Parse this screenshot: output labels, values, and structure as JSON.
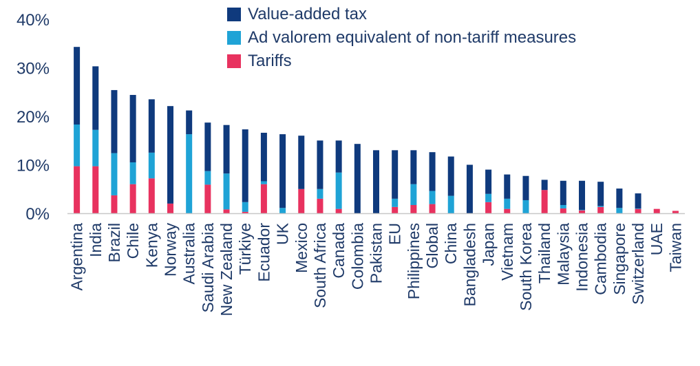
{
  "chart_data": {
    "type": "bar",
    "stacked": true,
    "title": "",
    "xlabel": "",
    "ylabel": "",
    "ylim": [
      0,
      40
    ],
    "yticks": [
      0,
      10,
      20,
      30,
      40
    ],
    "ytick_labels": [
      "0%",
      "10%",
      "20%",
      "30%",
      "40%"
    ],
    "legend_position": "top-center",
    "categories": [
      "Argentina",
      "India",
      "Brazil",
      "Chile",
      "Kenya",
      "Norway",
      "Australia",
      "Saudi Arabia",
      "New Zealand",
      "Türkiye",
      "Ecuador",
      "UK",
      "Mexico",
      "South Africa",
      "Canada",
      "Colombia",
      "Pakistan",
      "EU",
      "Philippines",
      "Global",
      "China",
      "Bangladesh",
      "Japan",
      "Vietnam",
      "South Korea",
      "Thailand",
      "Malaysia",
      "Indonesia",
      "Cambodia",
      "Singapore",
      "Switzerland",
      "UAE",
      "Taiwan"
    ],
    "series": [
      {
        "name": "Tariffs",
        "color": "#e8325f",
        "values": [
          9.7,
          9.7,
          3.7,
          6.0,
          7.2,
          2.0,
          0,
          5.9,
          0.8,
          0.3,
          6.0,
          0,
          5.0,
          3.0,
          0.9,
          0,
          0,
          1.3,
          1.7,
          1.9,
          0,
          0,
          2.3,
          0.9,
          0,
          4.8,
          1.0,
          0.6,
          1.3,
          0,
          0.9,
          0.9,
          0.5
        ]
      },
      {
        "name": "Ad valorem equivalent of non-tariff measures",
        "color": "#1fa3d6",
        "values": [
          8.6,
          7.5,
          8.7,
          4.5,
          5.3,
          0,
          16.3,
          2.8,
          7.4,
          2.0,
          0.6,
          1.1,
          0,
          2.0,
          7.5,
          0,
          0,
          1.7,
          4.3,
          2.7,
          3.6,
          0,
          1.7,
          2.1,
          2.7,
          0,
          0.7,
          0.1,
          0.2,
          1.1,
          0.1,
          0,
          0
        ]
      },
      {
        "name": "Value-added tax",
        "color": "#0f3a7d",
        "values": [
          16.0,
          13.1,
          13.0,
          13.9,
          11.0,
          20.1,
          4.9,
          10.0,
          10.0,
          15.0,
          10.0,
          15.2,
          11.0,
          10.0,
          6.6,
          14.3,
          13.0,
          10.0,
          7.0,
          8.0,
          8.1,
          10.0,
          5.0,
          5.0,
          5.0,
          2.1,
          5.0,
          6.0,
          5.0,
          4.0,
          3.1,
          0,
          0
        ]
      }
    ],
    "legend": [
      "Value-added tax",
      "Ad valorem equivalent of non-tariff measures",
      "Tariffs"
    ]
  }
}
